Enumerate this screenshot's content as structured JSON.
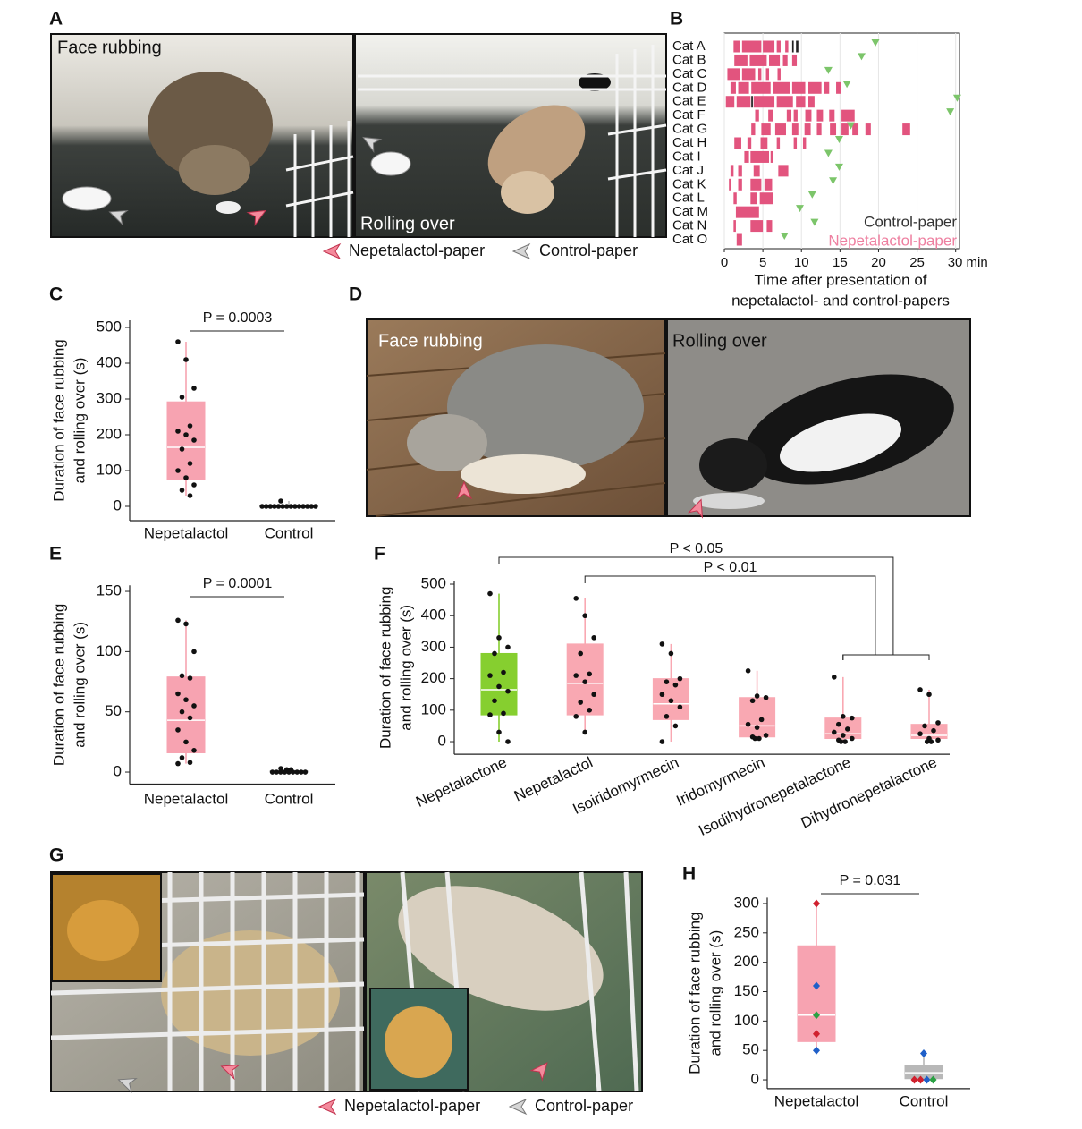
{
  "figure": {
    "panel_labels": [
      "A",
      "B",
      "C",
      "D",
      "E",
      "F",
      "G",
      "H"
    ],
    "photo_a_captions": [
      "Face rubbing",
      "Rolling over"
    ],
    "photo_d_captions": [
      "Face rubbing",
      "Rolling over"
    ],
    "paper_legend": [
      "Nepetalactol-paper",
      "Control-paper"
    ]
  },
  "chart_data": [
    {
      "type": "box",
      "y_label": [
        "Duration of face rubbing",
        "and rolling over (s)"
      ],
      "categories": [
        "Nepetalactol",
        "Control"
      ],
      "ylim": [
        -40,
        520
      ],
      "yticks": [
        0,
        100,
        200,
        300,
        400,
        500
      ],
      "annotation": "P = 0.0003",
      "boxes": [
        {
          "min": 30,
          "q1": 75,
          "median": 165,
          "q3": 292,
          "max": 460,
          "color": "#f7a3b1",
          "points": [
            460,
            410,
            330,
            305,
            225,
            210,
            200,
            185,
            160,
            120,
            100,
            80,
            60,
            45,
            30
          ]
        },
        {
          "min": 0,
          "q1": 0,
          "median": 0,
          "q3": 0,
          "max": 15,
          "color": "#bbbbbb",
          "points": [
            15,
            0,
            0,
            0,
            0,
            0,
            0,
            0,
            0,
            0,
            0,
            0,
            0,
            0,
            0
          ]
        }
      ]
    },
    {
      "type": "box",
      "y_label": [
        "Duration of face rubbing",
        "and rolling over (s)"
      ],
      "categories": [
        "Nepetalactol",
        "Control"
      ],
      "ylim": [
        -10,
        155
      ],
      "yticks": [
        0,
        50,
        100,
        150
      ],
      "annotation": "P = 0.0001",
      "boxes": [
        {
          "min": 7,
          "q1": 16,
          "median": 43,
          "q3": 79,
          "max": 126,
          "color": "#f7a3b1",
          "points": [
            126,
            123,
            100,
            80,
            78,
            65,
            60,
            55,
            50,
            45,
            35,
            25,
            18,
            12,
            8,
            7
          ]
        },
        {
          "min": 0,
          "q1": 0,
          "median": 0,
          "q3": 1,
          "max": 3,
          "color": "#bbbbbb",
          "points": [
            3,
            2,
            2,
            1,
            1,
            0,
            0,
            0,
            0,
            0,
            0,
            0,
            0,
            0
          ]
        }
      ]
    },
    {
      "type": "box",
      "y_label": [
        "Duration of face rubbing",
        "and rolling over (s)"
      ],
      "categories": [
        "Nepetalactone",
        "Nepetalactol",
        "Isoiridomyrmecin",
        "Iridomyrmecin",
        "Isodihydronepetalactone",
        "Dihydronepetalactone"
      ],
      "ylim": [
        -40,
        510
      ],
      "yticks": [
        0,
        100,
        200,
        300,
        400,
        500
      ],
      "comparisons": [
        {
          "label": "P < 0.05",
          "from": 0,
          "to": [
            4,
            5
          ]
        },
        {
          "label": "P < 0.01",
          "from": 1,
          "to": [
            4,
            5
          ]
        }
      ],
      "boxes": [
        {
          "min": 0,
          "q1": 85,
          "median": 165,
          "q3": 280,
          "max": 470,
          "color": "#86cf2f",
          "points": [
            470,
            330,
            300,
            280,
            220,
            210,
            175,
            160,
            130,
            90,
            85,
            30,
            0
          ]
        },
        {
          "min": 30,
          "q1": 85,
          "median": 185,
          "q3": 310,
          "max": 455,
          "color": "#f9a8b2",
          "points": [
            455,
            400,
            330,
            280,
            215,
            210,
            190,
            150,
            125,
            100,
            80,
            30
          ]
        },
        {
          "min": 0,
          "q1": 70,
          "median": 120,
          "q3": 200,
          "max": 310,
          "color": "#f9a8b2",
          "points": [
            310,
            280,
            200,
            190,
            180,
            150,
            130,
            110,
            80,
            50,
            0
          ]
        },
        {
          "min": 10,
          "q1": 15,
          "median": 50,
          "q3": 140,
          "max": 225,
          "color": "#f9a8b2",
          "points": [
            225,
            145,
            140,
            130,
            70,
            55,
            45,
            20,
            15,
            10,
            10
          ]
        },
        {
          "min": 0,
          "q1": 10,
          "median": 25,
          "q3": 75,
          "max": 205,
          "color": "#f9a8b2",
          "points": [
            205,
            80,
            75,
            55,
            40,
            30,
            20,
            10,
            5,
            0,
            0
          ]
        },
        {
          "min": 0,
          "q1": 10,
          "median": 20,
          "q3": 55,
          "max": 165,
          "color": "#f9a8b2",
          "points": [
            165,
            150,
            60,
            50,
            35,
            25,
            10,
            5,
            0,
            0
          ]
        }
      ]
    },
    {
      "type": "box",
      "y_label": [
        "Duration of face rubbing",
        "and rolling over (s)"
      ],
      "categories": [
        "Nepetalactol",
        "Control"
      ],
      "ylim": [
        -15,
        310
      ],
      "yticks": [
        0,
        50,
        100,
        150,
        200,
        250,
        300
      ],
      "annotation": "P = 0.031",
      "boxes": [
        {
          "min": 50,
          "q1": 65,
          "median": 110,
          "q3": 228,
          "max": 300,
          "color": "#f7a3b1",
          "points": [
            300,
            160,
            110,
            78,
            50
          ],
          "point_colors": [
            "#d0202e",
            "#1f5fc8",
            "#2aa043",
            "#d0202e",
            "#1f5fc8"
          ]
        },
        {
          "min": 0,
          "q1": 2,
          "median": 12,
          "q3": 25,
          "max": 45,
          "color": "#b8b8b8",
          "points": [
            45,
            0,
            0,
            0,
            0
          ],
          "point_colors": [
            "#1f5fc8",
            "#d0202e",
            "#d0202e",
            "#1f5fc8",
            "#2aa043"
          ]
        }
      ]
    },
    {
      "type": "raster",
      "x_label": [
        "Time after presentation of",
        "nepetalactol- and control-papers"
      ],
      "categories": [
        "Cat A",
        "Cat B",
        "Cat C",
        "Cat D",
        "Cat E",
        "Cat F",
        "Cat G",
        "Cat H",
        "Cat I",
        "Cat J",
        "Cat K",
        "Cat L",
        "Cat M",
        "Cat N",
        "Cat O"
      ],
      "xlim": [
        0,
        30.5
      ],
      "xticks": [
        0,
        5,
        10,
        15,
        20,
        25,
        {
          "value": 30,
          "label": "30 min"
        }
      ],
      "grid": true,
      "series": [
        {
          "name": "Control-paper",
          "color": "#222222",
          "bouts": [
            [
              [
                8.8,
                9.0
              ],
              [
                9.3,
                9.6
              ]
            ],
            [],
            [],
            [],
            [
              [
                3.5,
                3.7
              ]
            ],
            [],
            [],
            [],
            [],
            [],
            [],
            [],
            [],
            [],
            []
          ]
        },
        {
          "name": "Nepetalactol-paper",
          "color": "#e2547e",
          "bouts": [
            [
              [
                1.2,
                2.0
              ],
              [
                2.3,
                4.8
              ],
              [
                5.0,
                6.5
              ],
              [
                6.8,
                7.3
              ],
              [
                7.9,
                8.3
              ]
            ],
            [
              [
                1.3,
                3.0
              ],
              [
                3.3,
                5.5
              ],
              [
                5.8,
                7.2
              ],
              [
                7.6,
                8.2
              ],
              [
                8.8,
                9.4
              ]
            ],
            [
              [
                0.4,
                2.0
              ],
              [
                2.3,
                4.0
              ],
              [
                4.4,
                4.8
              ],
              [
                5.4,
                5.8
              ],
              [
                6.9,
                7.3
              ]
            ],
            [
              [
                0.8,
                1.5
              ],
              [
                1.8,
                3.2
              ],
              [
                3.5,
                6.0
              ],
              [
                6.3,
                8.5
              ],
              [
                8.8,
                10.5
              ],
              [
                10.9,
                12.6
              ],
              [
                12.9,
                13.6
              ],
              [
                14.5,
                15.1
              ]
            ],
            [
              [
                0.2,
                1.3
              ],
              [
                1.6,
                3.4
              ],
              [
                3.8,
                6.5
              ],
              [
                6.8,
                8.9
              ],
              [
                9.3,
                10.5
              ],
              [
                10.9,
                11.7
              ]
            ],
            [
              [
                4.0,
                4.5
              ],
              [
                5.7,
                6.3
              ],
              [
                8.1,
                8.7
              ],
              [
                9.0,
                9.5
              ],
              [
                10.5,
                11.3
              ],
              [
                12.0,
                12.8
              ],
              [
                13.6,
                14.3
              ],
              [
                15.2,
                16.9
              ]
            ],
            [
              [
                3.5,
                4.0
              ],
              [
                4.8,
                6.0
              ],
              [
                6.6,
                8.0
              ],
              [
                8.8,
                9.6
              ],
              [
                10.4,
                11.2
              ],
              [
                12.0,
                12.6
              ],
              [
                13.7,
                14.5
              ],
              [
                15.2,
                16.1
              ],
              [
                16.6,
                17.4
              ],
              [
                18.3,
                19.0
              ],
              [
                23.1,
                24.1
              ]
            ],
            [
              [
                1.3,
                2.2
              ],
              [
                3.0,
                3.5
              ],
              [
                4.7,
                5.6
              ],
              [
                6.8,
                7.2
              ],
              [
                9.0,
                9.4
              ],
              [
                10.2,
                10.6
              ]
            ],
            [
              [
                2.6,
                3.2
              ],
              [
                3.4,
                5.8
              ],
              [
                6.0,
                6.3
              ]
            ],
            [
              [
                0.8,
                1.2
              ],
              [
                1.8,
                2.3
              ],
              [
                3.8,
                4.6
              ],
              [
                7.0,
                8.3
              ]
            ],
            [
              [
                0.6,
                0.9
              ],
              [
                1.8,
                2.3
              ],
              [
                3.4,
                4.8
              ],
              [
                5.2,
                6.2
              ]
            ],
            [
              [
                1.2,
                1.6
              ],
              [
                3.4,
                4.2
              ],
              [
                4.6,
                6.3
              ]
            ],
            [
              [
                1.5,
                4.5
              ]
            ],
            [
              [
                1.2,
                1.5
              ],
              [
                3.4,
                5.0
              ],
              [
                5.5,
                6.2
              ]
            ],
            [
              [
                1.6,
                2.3
              ]
            ]
          ]
        }
      ],
      "markers": {
        "color": "#7cc56a",
        "values": [
          19.6,
          17.8,
          13.5,
          15.9,
          30.2,
          29.3,
          16.4,
          14.9,
          13.5,
          14.9,
          14.1,
          11.4,
          9.8,
          11.7,
          7.8
        ]
      }
    }
  ]
}
